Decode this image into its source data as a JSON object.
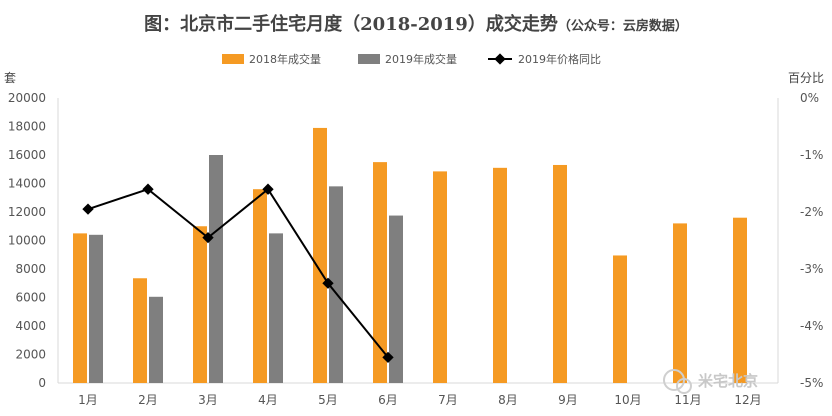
{
  "chart_data": {
    "type": "bar",
    "title": "图：北京市二手住宅月度（2018-2019）成交走势",
    "title_note": "（公众号：云房数据）",
    "y_left_label": "套",
    "y_right_label": "百分比",
    "categories": [
      "1月",
      "2月",
      "3月",
      "4月",
      "5月",
      "6月",
      "7月",
      "8月",
      "9月",
      "10月",
      "11月",
      "12月"
    ],
    "y_left_ticks": [
      "0",
      "2000",
      "4000",
      "6000",
      "8000",
      "10000",
      "12000",
      "14000",
      "16000",
      "18000",
      "20000"
    ],
    "y_right_ticks": [
      "0%",
      "-1%",
      "-2%",
      "-3%",
      "-4%",
      "-5%"
    ],
    "ylim_left": [
      0,
      20000
    ],
    "ylim_right": [
      -5,
      0
    ],
    "legend_position": "top",
    "grid": false,
    "series": [
      {
        "name": "2018年成交量",
        "kind": "bar",
        "axis": "left",
        "color": "#f59a23",
        "values": [
          10500,
          7350,
          11000,
          13600,
          17900,
          15500,
          14850,
          15100,
          15300,
          8950,
          11200,
          11600
        ]
      },
      {
        "name": "2019年成交量",
        "kind": "bar",
        "axis": "left",
        "color": "#7f7f7f",
        "values": [
          10400,
          6050,
          16000,
          10500,
          13800,
          11750,
          null,
          null,
          null,
          null,
          null,
          null
        ]
      },
      {
        "name": "2019年价格同比",
        "kind": "line",
        "axis": "right",
        "color": "#000000",
        "values": [
          -1.95,
          -1.6,
          -2.45,
          -1.6,
          -3.25,
          -4.55,
          null,
          null,
          null,
          null,
          null,
          null
        ]
      }
    ]
  },
  "watermark": {
    "text": "米宅北京"
  }
}
